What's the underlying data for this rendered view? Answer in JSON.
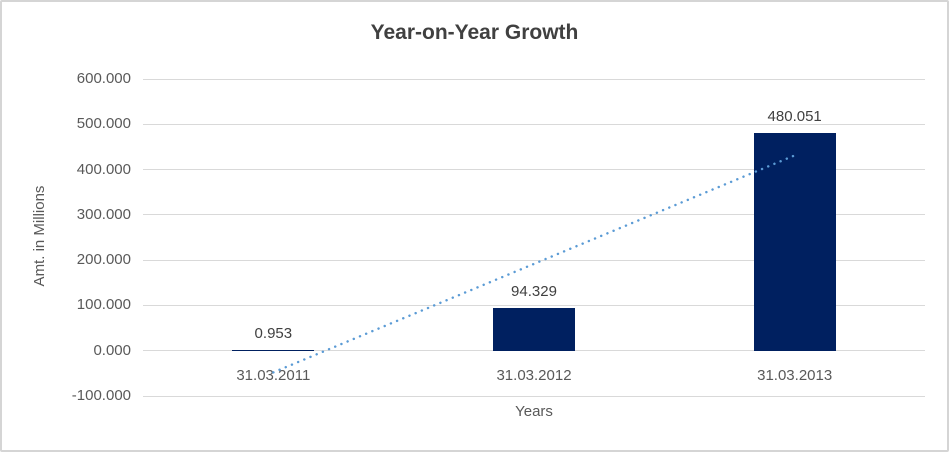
{
  "chart_data": {
    "type": "bar",
    "title": "Year-on-Year Growth",
    "xlabel": "Years",
    "ylabel": "Amt. in Millions",
    "categories": [
      "31.03.2011",
      "31.03.2012",
      "31.03.2013"
    ],
    "values": [
      0.953,
      94.329,
      480.051
    ],
    "data_labels": [
      "0.953",
      "94.329",
      "480.051"
    ],
    "y_tick_labels": [
      "600.000",
      "500.000",
      "400.000",
      "300.000",
      "200.000",
      "100.000",
      "0.000",
      "-100.000"
    ],
    "y_tick_values": [
      600,
      500,
      400,
      300,
      200,
      100,
      0,
      -100
    ],
    "ylim": [
      -100,
      600
    ],
    "grid": true,
    "legend": "none",
    "trendline": {
      "type": "linear",
      "style": "dotted",
      "start_value": -47.77,
      "end_value": 431.33
    },
    "colors": {
      "bar": "#002060",
      "trendline": "#5b9bd5",
      "gridline": "#d9d9d9",
      "title_text": "#404040",
      "axis_text": "#595959",
      "data_label_text": "#404040",
      "background": "#ffffff",
      "frame_border": "#d5d5d5"
    }
  }
}
